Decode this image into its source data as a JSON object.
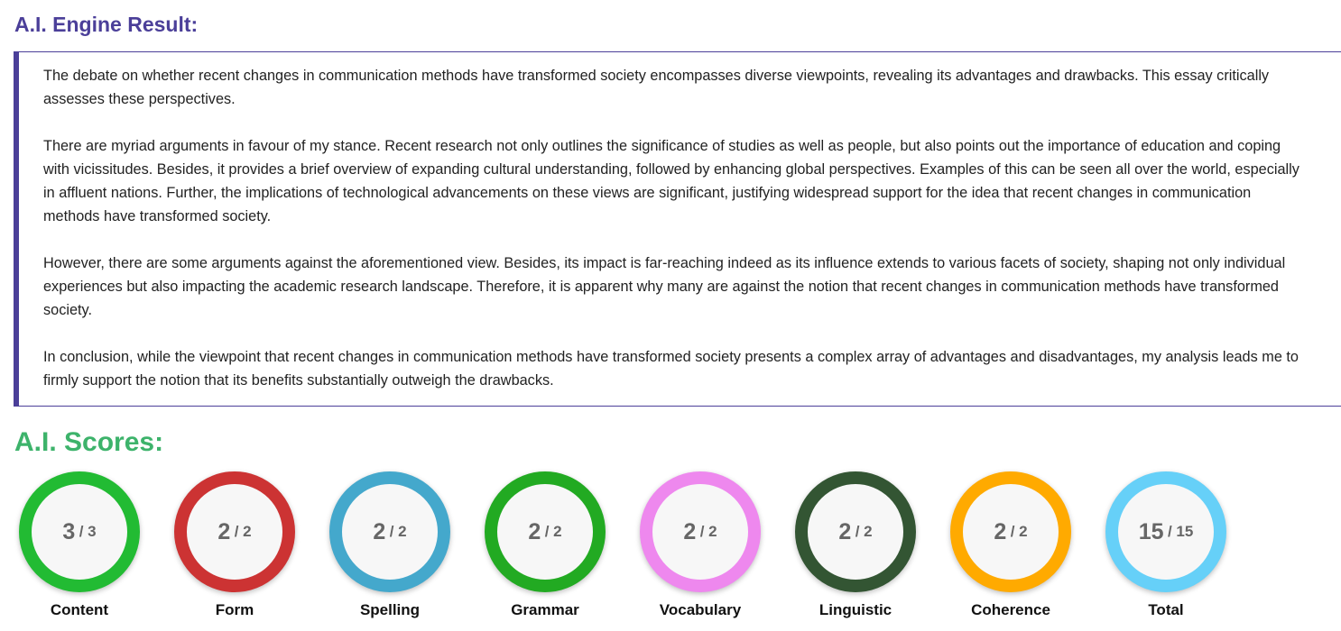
{
  "result": {
    "title": "A.I. Engine Result:",
    "paragraphs": [
      "The debate on whether recent changes in communication methods have transformed society encompasses diverse viewpoints, revealing its advantages and drawbacks. This essay critically assesses these perspectives.",
      "There are myriad arguments in favour of my stance. Recent research not only outlines the significance of studies as well as people, but also points out the importance of education and coping with vicissitudes. Besides, it provides a brief overview of expanding cultural understanding, followed by enhancing global perspectives. Examples of this can be seen all over the world, especially in affluent nations. Further, the implications of technological advancements on these views are significant, justifying widespread support for the idea that recent changes in communication methods have transformed society.",
      "However, there are some arguments against the aforementioned view. Besides, its impact is far-reaching indeed as its influence extends to various facets of society, shaping not only individual experiences but also impacting the academic research landscape. Therefore, it is apparent why many are against the notion that recent changes in communication methods have transformed society.",
      "In conclusion, while the viewpoint that recent changes in communication methods have transformed society presents a complex array of advantages and disadvantages, my analysis leads me to firmly support the notion that its benefits substantially outweigh the drawbacks."
    ]
  },
  "scores": {
    "title": "A.I. Scores:",
    "items": [
      {
        "label": "Content",
        "value": "3",
        "max": "/ 3",
        "color": "#22bb33"
      },
      {
        "label": "Form",
        "value": "2",
        "max": "/ 2",
        "color": "#cc3333"
      },
      {
        "label": "Spelling",
        "value": "2",
        "max": "/ 2",
        "color": "#44a8cc"
      },
      {
        "label": "Grammar",
        "value": "2",
        "max": "/ 2",
        "color": "#22aa22"
      },
      {
        "label": "Vocabulary",
        "value": "2",
        "max": "/ 2",
        "color": "#ee88ee"
      },
      {
        "label": "Linguistic",
        "value": "2",
        "max": "/ 2",
        "color": "#335533"
      },
      {
        "label": "Coherence",
        "value": "2",
        "max": "/ 2",
        "color": "#ffaa00"
      },
      {
        "label": "Total",
        "value": "15",
        "max": "/ 15",
        "color": "#66d0f8"
      }
    ]
  }
}
